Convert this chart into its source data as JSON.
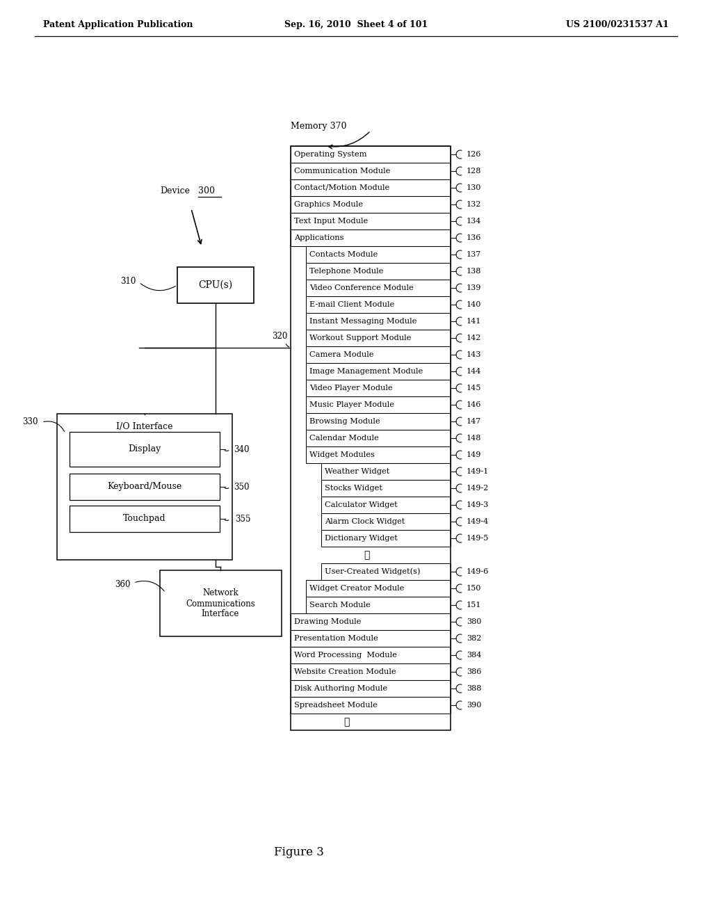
{
  "header_left": "Patent Application Publication",
  "header_center": "Sep. 16, 2010  Sheet 4 of 101",
  "header_right": "US 2100/0231537 A1",
  "figure_label": "Figure 3",
  "memory_label": "Memory 370",
  "device_label": "Device",
  "device_num": "300",
  "cpu_label": "CPU(s)",
  "cpu_ref": "310",
  "bus_ref": "320",
  "io_label": "I/O Interface",
  "io_ref": "330",
  "display_label": "Display",
  "display_ref": "340",
  "keyboard_label": "Keyboard/Mouse",
  "keyboard_ref": "350",
  "touchpad_label": "Touchpad",
  "touchpad_ref": "355",
  "network_label": "Network\nCommunications\nInterface",
  "network_ref": "360",
  "memory_rows": [
    {
      "label": "Operating System",
      "ref": "126",
      "indent": 0
    },
    {
      "label": "Communication Module",
      "ref": "128",
      "indent": 0
    },
    {
      "label": "Contact/Motion Module",
      "ref": "130",
      "indent": 0
    },
    {
      "label": "Graphics Module",
      "ref": "132",
      "indent": 0
    },
    {
      "label": "Text Input Module",
      "ref": "134",
      "indent": 0
    },
    {
      "label": "Applications",
      "ref": "136",
      "indent": 0
    },
    {
      "label": "Contacts Module",
      "ref": "137",
      "indent": 1
    },
    {
      "label": "Telephone Module",
      "ref": "138",
      "indent": 1
    },
    {
      "label": "Video Conference Module",
      "ref": "139",
      "indent": 1
    },
    {
      "label": "E-mail Client Module",
      "ref": "140",
      "indent": 1
    },
    {
      "label": "Instant Messaging Module",
      "ref": "141",
      "indent": 1
    },
    {
      "label": "Workout Support Module",
      "ref": "142",
      "indent": 1
    },
    {
      "label": "Camera Module",
      "ref": "143",
      "indent": 1
    },
    {
      "label": "Image Management Module",
      "ref": "144",
      "indent": 1
    },
    {
      "label": "Video Player Module",
      "ref": "145",
      "indent": 1
    },
    {
      "label": "Music Player Module",
      "ref": "146",
      "indent": 1
    },
    {
      "label": "Browsing Module",
      "ref": "147",
      "indent": 1
    },
    {
      "label": "Calendar Module",
      "ref": "148",
      "indent": 1
    },
    {
      "label": "Widget Modules",
      "ref": "149",
      "indent": 1
    },
    {
      "label": "Weather Widget",
      "ref": "149-1",
      "indent": 2
    },
    {
      "label": "Stocks Widget",
      "ref": "149-2",
      "indent": 2
    },
    {
      "label": "Calculator Widget",
      "ref": "149-3",
      "indent": 2
    },
    {
      "label": "Alarm Clock Widget",
      "ref": "149-4",
      "indent": 2
    },
    {
      "label": "Dictionary Widget",
      "ref": "149-5",
      "indent": 2
    },
    {
      "label": "⋮",
      "ref": "",
      "indent": 2
    },
    {
      "label": "User-Created Widget(s)",
      "ref": "149-6",
      "indent": 2
    },
    {
      "label": "Widget Creator Module",
      "ref": "150",
      "indent": 1
    },
    {
      "label": "Search Module",
      "ref": "151",
      "indent": 1
    },
    {
      "label": "Drawing Module",
      "ref": "380",
      "indent": 0
    },
    {
      "label": "Presentation Module",
      "ref": "382",
      "indent": 0
    },
    {
      "label": "Word Processing  Module",
      "ref": "384",
      "indent": 0
    },
    {
      "label": "Website Creation Module",
      "ref": "386",
      "indent": 0
    },
    {
      "label": "Disk Authoring Module",
      "ref": "388",
      "indent": 0
    },
    {
      "label": "Spreadsheet Module",
      "ref": "390",
      "indent": 0
    },
    {
      "label": "⋮",
      "ref": "",
      "indent": 0
    }
  ]
}
